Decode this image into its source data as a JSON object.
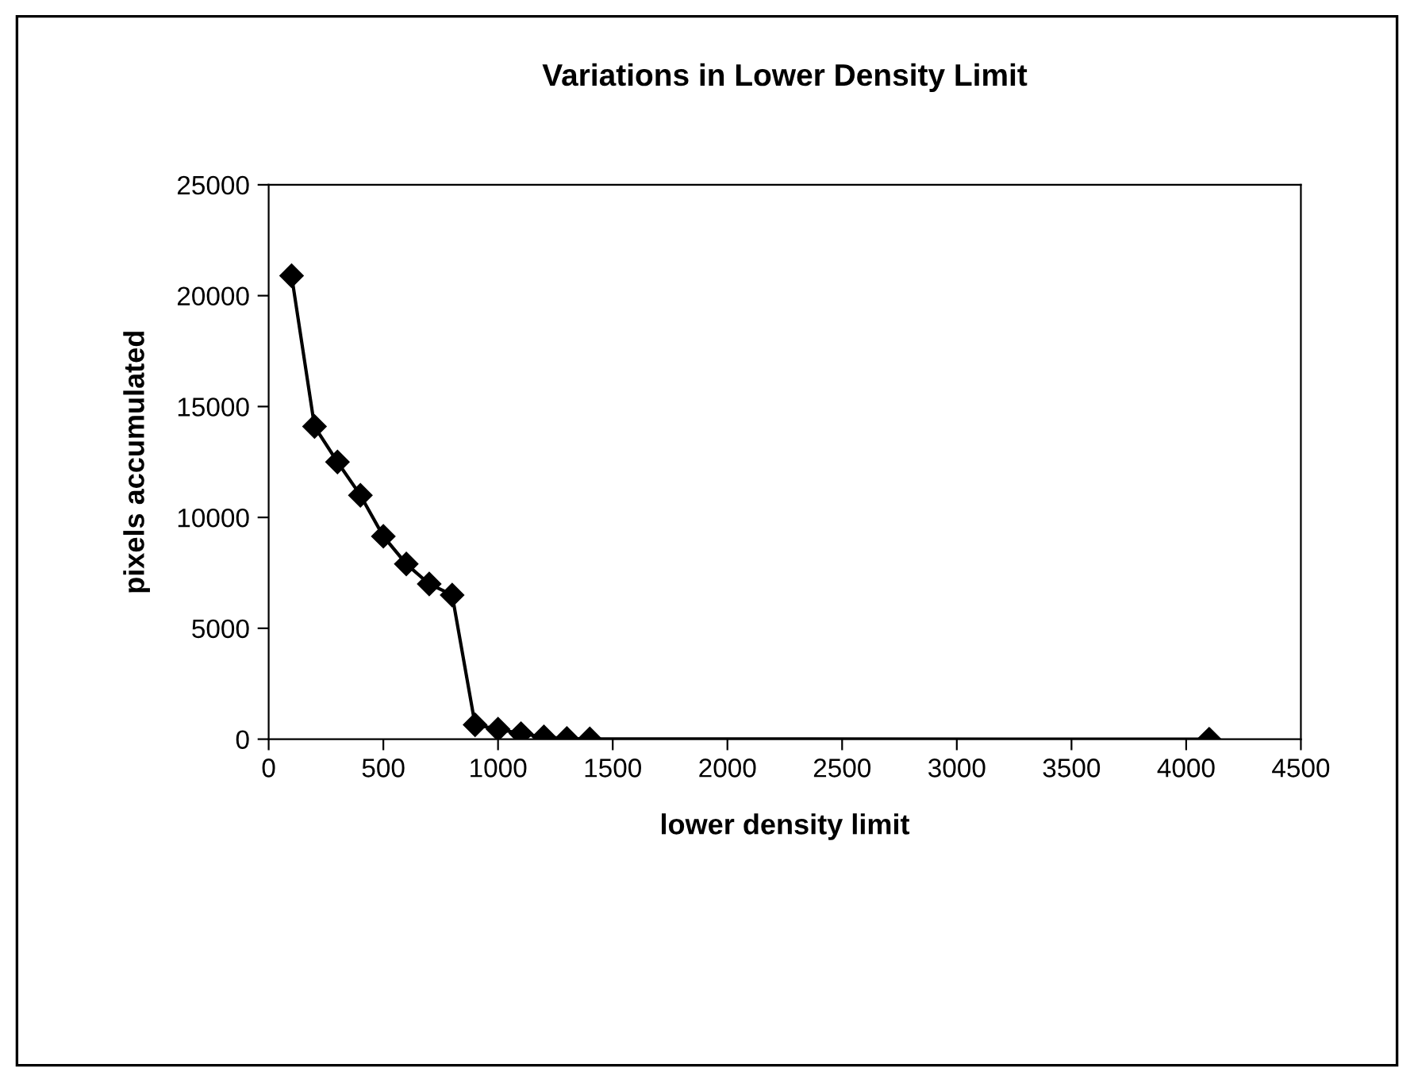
{
  "chart_data": {
    "type": "line",
    "title": "Variations in Lower Density Limit",
    "xlabel": "lower density limit",
    "ylabel": "pixels accumulated",
    "x": [
      100,
      200,
      300,
      400,
      500,
      600,
      700,
      800,
      900,
      1000,
      1100,
      1200,
      1300,
      1400,
      4100
    ],
    "series": [
      {
        "color": "#000000",
        "values": [
          20900,
          14100,
          12500,
          11000,
          9150,
          7900,
          7000,
          6500,
          650,
          450,
          250,
          100,
          30,
          10,
          0
        ]
      }
    ],
    "xlim": [
      0,
      4500
    ],
    "xticks": [
      0,
      500,
      1000,
      1500,
      2000,
      2500,
      3000,
      3500,
      4000,
      4500
    ],
    "ylim": [
      0,
      25000
    ],
    "yticks": [
      0,
      5000,
      10000,
      15000,
      20000,
      25000
    ],
    "marker": "diamond",
    "line_style": "solid",
    "grid": false,
    "legend": false
  }
}
